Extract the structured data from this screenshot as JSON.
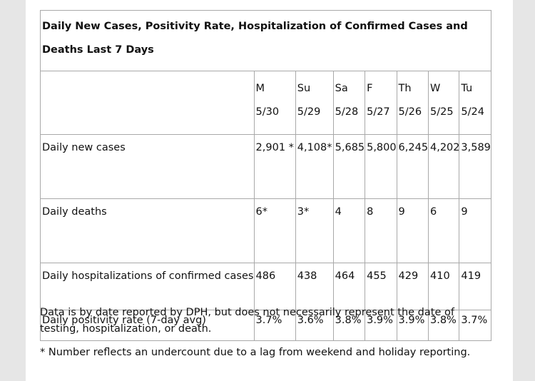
{
  "title": "Daily New Cases, Positivity Rate, Hospitalization of Confirmed Cases and Deaths Last 7 Days",
  "columns": [
    {
      "day": "M",
      "date": "5/30"
    },
    {
      "day": "Su",
      "date": "5/29"
    },
    {
      "day": "Sa",
      "date": "5/28"
    },
    {
      "day": "F",
      "date": "5/27"
    },
    {
      "day": "Th",
      "date": "5/26"
    },
    {
      "day": "W",
      "date": "5/25"
    },
    {
      "day": "Tu",
      "date": "5/24"
    }
  ],
  "rows": [
    {
      "label": "Daily new cases",
      "values": [
        "2,901 *",
        "4,108*",
        "5,685",
        "5,800",
        "6,245",
        "4,202",
        "3,589"
      ]
    },
    {
      "label": "Daily deaths",
      "values": [
        "6*",
        "3*",
        "4",
        "8",
        "9",
        "6",
        "9"
      ]
    },
    {
      "label": "Daily hospitalizations of confirmed cases",
      "values": [
        "486",
        "438",
        "464",
        "455",
        "429",
        "410",
        "419"
      ]
    },
    {
      "label": "Daily positivity rate (7-day avg)",
      "values": [
        "3.7%",
        "3.6%",
        "3.8%",
        "3.9%",
        "3.9%",
        "3.8%",
        "3.7%"
      ]
    }
  ],
  "notes": {
    "source": "Data is by date reported by DPH, but does not necessarily represent the date of testing, hospitalization, or death.",
    "undercount": "* Number reflects an undercount due to a lag from weekend and holiday reporting."
  }
}
